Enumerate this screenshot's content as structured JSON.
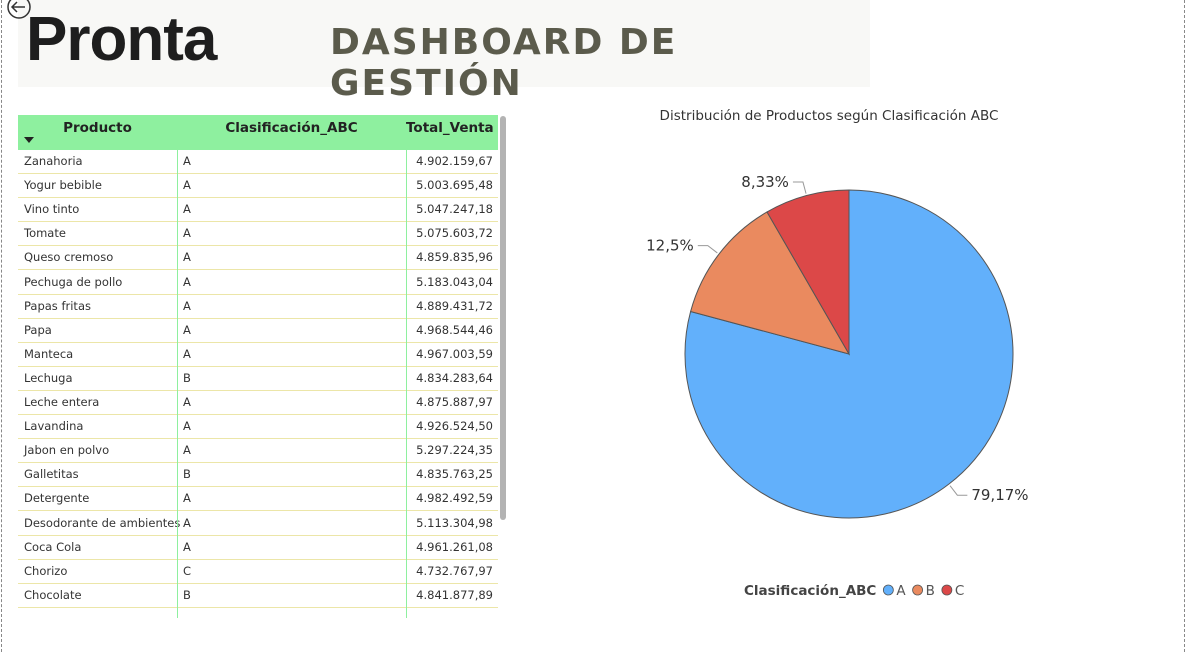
{
  "header": {
    "logo": "Pronta",
    "title": "DASHBOARD DE GESTIÓN"
  },
  "table": {
    "columns": [
      "Producto",
      "Clasificación_ABC",
      "Total_Venta"
    ],
    "rows": [
      [
        "Zanahoria",
        "A",
        "4.902.159,67"
      ],
      [
        "Yogur bebible",
        "A",
        "5.003.695,48"
      ],
      [
        "Vino tinto",
        "A",
        "5.047.247,18"
      ],
      [
        "Tomate",
        "A",
        "5.075.603,72"
      ],
      [
        "Queso cremoso",
        "A",
        "4.859.835,96"
      ],
      [
        "Pechuga de pollo",
        "A",
        "5.183.043,04"
      ],
      [
        "Papas fritas",
        "A",
        "4.889.431,72"
      ],
      [
        "Papa",
        "A",
        "4.968.544,46"
      ],
      [
        "Manteca",
        "A",
        "4.967.003,59"
      ],
      [
        "Lechuga",
        "B",
        "4.834.283,64"
      ],
      [
        "Leche entera",
        "A",
        "4.875.887,97"
      ],
      [
        "Lavandina",
        "A",
        "4.926.524,50"
      ],
      [
        "Jabon en polvo",
        "A",
        "5.297.224,35"
      ],
      [
        "Galletitas",
        "B",
        "4.835.763,25"
      ],
      [
        "Detergente",
        "A",
        "4.982.492,59"
      ],
      [
        "Desodorante de ambientes",
        "A",
        "5.113.304,98"
      ],
      [
        "Coca Cola",
        "A",
        "4.961.261,08"
      ],
      [
        "Chorizo",
        "C",
        "4.732.767,97"
      ],
      [
        "Chocolate",
        "B",
        "4.841.877,89"
      ]
    ]
  },
  "chart_data": {
    "type": "pie",
    "title": "Distribución de Productos según Clasificación ABC",
    "legend_title": "Clasificación_ABC",
    "categories": [
      "A",
      "B",
      "C"
    ],
    "values": [
      79.17,
      12.5,
      8.33
    ],
    "value_labels": [
      "79,17%",
      "12,5%",
      "8,33%"
    ],
    "colors": [
      "#62b0fb",
      "#ea8a5f",
      "#dc4848"
    ]
  }
}
